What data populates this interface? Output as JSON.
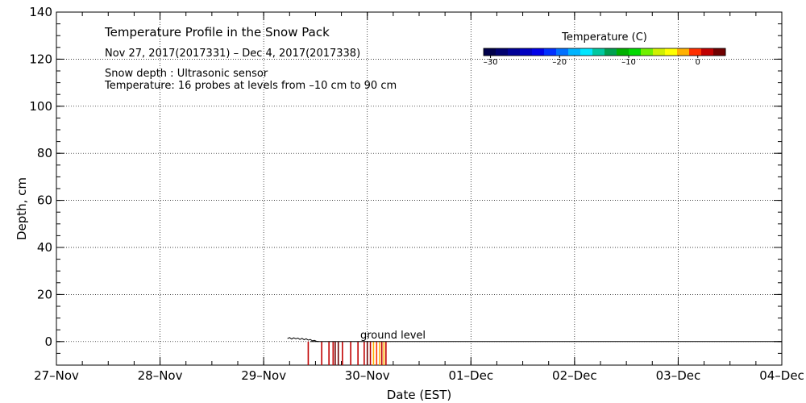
{
  "chart_data": {
    "type": "heatmap",
    "title": "Temperature Profile in the Snow Pack",
    "subtitle": "Nov 27, 2017(2017331) – Dec  4, 2017(2017338)",
    "notes": [
      "Snow depth : Ultrasonic sensor",
      "Temperature: 16 probes at levels from –10 cm to 90 cm"
    ],
    "xlabel": "Date (EST)",
    "ylabel": "Depth, cm",
    "x_ticks": [
      "27–Nov",
      "28–Nov",
      "29–Nov",
      "30–Nov",
      "01–Dec",
      "02–Dec",
      "03–Dec",
      "04–Dec"
    ],
    "xlim_days": [
      0,
      7
    ],
    "ylim": [
      -10,
      140
    ],
    "y_ticks": [
      0,
      20,
      40,
      60,
      80,
      100,
      120,
      140
    ],
    "grid": true,
    "ground_level_label": "ground level",
    "ground_level_value": 0,
    "colorbar": {
      "title": "Temperature (C)",
      "range": [
        -31,
        4
      ],
      "tick_values": [
        -30,
        -20,
        -10,
        0
      ],
      "tick_labels": [
        "–30",
        "–20",
        "–10",
        "0"
      ],
      "colors": [
        "#00004a",
        "#00006e",
        "#000096",
        "#0000c0",
        "#0000e8",
        "#0030ff",
        "#0070ff",
        "#00b4ff",
        "#00e6ff",
        "#00c8a0",
        "#00a050",
        "#00b000",
        "#00d800",
        "#70f000",
        "#d0f000",
        "#ffff00",
        "#ffb000",
        "#ff3000",
        "#c00000",
        "#700000"
      ]
    },
    "snow_depth_trace": {
      "x": [
        2.23,
        2.25,
        2.27,
        2.29,
        2.31,
        2.33,
        2.35,
        2.37,
        2.39,
        2.41,
        2.43,
        2.45,
        2.47,
        2.49,
        2.51,
        2.53
      ],
      "y": [
        1.3,
        1.7,
        1.1,
        1.6,
        1.2,
        1.5,
        0.9,
        1.4,
        0.8,
        1.2,
        0.6,
        0.9,
        0.3,
        0.5,
        0.1,
        0.0
      ]
    },
    "temperature_series": [
      {
        "x": 2.43,
        "depth_bottom": -10,
        "temperature": 1.5
      },
      {
        "x": 2.56,
        "depth_bottom": -10,
        "temperature": 1.5
      },
      {
        "x": 2.63,
        "depth_bottom": -10,
        "temperature": 2.0
      },
      {
        "x": 2.67,
        "depth_bottom": -10,
        "temperature": 2.0
      },
      {
        "x": 2.69,
        "depth_bottom": -10,
        "temperature": 2.5
      },
      {
        "x": 2.72,
        "depth_bottom": -10,
        "temperature": 2.5
      },
      {
        "x": 2.76,
        "depth_bottom": -10,
        "temperature": 1.5
      },
      {
        "x": 2.84,
        "depth_bottom": -10,
        "temperature": 2.0
      },
      {
        "x": 2.91,
        "depth_bottom": -10,
        "temperature": 1.5
      },
      {
        "x": 2.97,
        "depth_bottom": -10,
        "temperature": 0.5
      },
      {
        "x": 3.0,
        "depth_bottom": -10,
        "temperature": 2.5
      },
      {
        "x": 3.03,
        "depth_bottom": -10,
        "temperature": 1.5
      },
      {
        "x": 3.06,
        "depth_bottom": -10,
        "temperature": -1.5
      },
      {
        "x": 3.09,
        "depth_bottom": -10,
        "temperature": 0.0
      },
      {
        "x": 3.12,
        "depth_bottom": -10,
        "temperature": -2.0
      },
      {
        "x": 3.14,
        "depth_bottom": -10,
        "temperature": 1.0
      },
      {
        "x": 3.16,
        "depth_bottom": -10,
        "temperature": -2.5
      },
      {
        "x": 3.18,
        "depth_bottom": -10,
        "temperature": 1.5
      }
    ],
    "ground_line_x": [
      2.45,
      7.0
    ]
  }
}
